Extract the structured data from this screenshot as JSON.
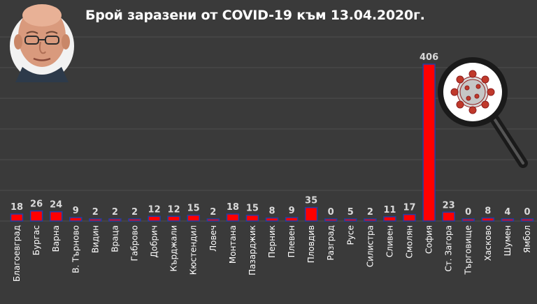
{
  "chart_data": {
    "type": "bar",
    "title": "Брой заразени от COVID-19 към 13.04.2020г.",
    "xlabel": "",
    "ylabel": "",
    "ylim": [
      0,
      406
    ],
    "grid": true,
    "legend": "none",
    "categories": [
      "Благоевград",
      "Бургас",
      "Варна",
      "В. Търново",
      "Видин",
      "Враца",
      "Габрово",
      "Добрич",
      "Кърджали",
      "Кюстендил",
      "Ловеч",
      "Монтана",
      "Пазарджик",
      "Перник",
      "Плевен",
      "Пловдив",
      "Разград",
      "Русе",
      "Силистра",
      "Сливен",
      "Смолян",
      "София",
      "Ст. Загора",
      "Търговище",
      "Хасково",
      "Шумен",
      "Ямбол"
    ],
    "values": [
      18,
      26,
      24,
      9,
      2,
      2,
      2,
      12,
      12,
      15,
      2,
      18,
      15,
      8,
      9,
      35,
      0,
      5,
      2,
      11,
      17,
      406,
      23,
      0,
      8,
      4,
      0
    ],
    "labels": [
      "18",
      "26",
      "24",
      "9",
      "2",
      "2",
      "2",
      "12",
      "12",
      "15",
      "2",
      "18",
      "15",
      "8",
      "9",
      "35",
      "0",
      "5",
      "2",
      "11",
      "17",
      "406",
      "23",
      "0",
      "8",
      "4",
      "0"
    ]
  },
  "colors": {
    "background": "#3a3a3a",
    "bar": "#ff0000",
    "bar_outline": "#1e3fa8",
    "grid": "#4e4e4e",
    "text": "#ffffff",
    "value_text": "#d9d9d9"
  },
  "decorations": {
    "portrait": "person-portrait-image",
    "virus": "magnifying-glass-virus-icon"
  }
}
